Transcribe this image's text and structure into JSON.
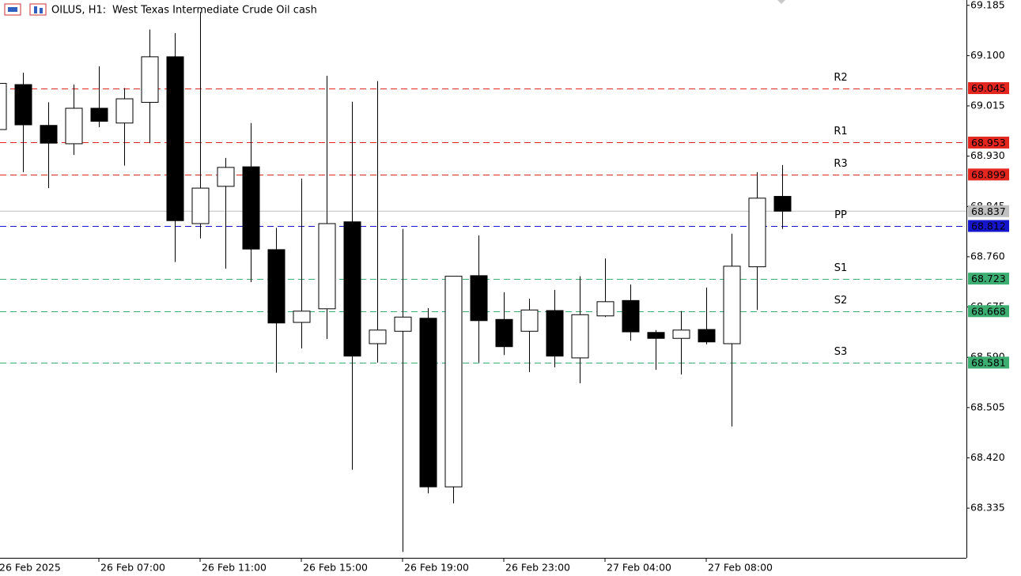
{
  "chart_data": {
    "type": "candlestick",
    "symbol": "OILUS, H1:",
    "title": "West Texas Intermediate Crude Oil cash",
    "categories": [
      "26 Feb 2025",
      null,
      null,
      null,
      "26 Feb 07:00",
      null,
      null,
      null,
      "26 Feb 11:00",
      null,
      null,
      null,
      "26 Feb 15:00",
      null,
      null,
      null,
      "26 Feb 19:00",
      null,
      null,
      null,
      "26 Feb 23:00",
      null,
      null,
      null,
      "27 Feb 04:00",
      null,
      null,
      null,
      "27 Feb 08:00",
      null,
      null,
      null
    ],
    "open": [
      68.975,
      69.051,
      68.982,
      68.951,
      69.011,
      68.986,
      69.021,
      69.098,
      68.816,
      68.879,
      68.912,
      68.772,
      68.649,
      68.672,
      68.819,
      68.613,
      68.634,
      68.656,
      68.371,
      68.728,
      68.654,
      68.634,
      68.669,
      68.589,
      68.66,
      68.686,
      68.632,
      68.622,
      68.637,
      68.613,
      68.743,
      68.862
    ],
    "high": [
      69.053,
      69.071,
      69.021,
      69.051,
      69.082,
      69.045,
      69.144,
      69.138,
      69.174,
      68.927,
      68.986,
      68.809,
      68.892,
      69.066,
      69.022,
      69.057,
      68.807,
      68.673,
      68.727,
      68.796,
      68.7,
      68.689,
      68.704,
      68.727,
      68.757,
      68.713,
      68.636,
      68.668,
      68.708,
      68.799,
      68.903,
      68.915
    ],
    "low": [
      68.975,
      68.903,
      68.876,
      68.932,
      68.979,
      68.914,
      68.952,
      68.751,
      68.791,
      68.74,
      68.717,
      68.564,
      68.605,
      68.621,
      68.4,
      68.581,
      68.261,
      68.36,
      68.343,
      68.581,
      68.594,
      68.565,
      68.573,
      68.546,
      68.658,
      68.618,
      68.569,
      68.561,
      68.612,
      68.473,
      68.67,
      68.807
    ],
    "close": [
      69.053,
      68.983,
      68.952,
      69.011,
      68.989,
      69.027,
      69.098,
      68.821,
      68.876,
      68.911,
      68.773,
      68.648,
      68.668,
      68.816,
      68.592,
      68.636,
      68.658,
      68.371,
      68.727,
      68.652,
      68.608,
      68.67,
      68.592,
      68.662,
      68.684,
      68.633,
      68.622,
      68.636,
      68.616,
      68.744,
      68.859,
      68.837
    ],
    "up_color": "#ffffff",
    "down_color": "#000000",
    "levels": [
      {
        "name": "R2",
        "value": 69.045,
        "color": "#e3261e"
      },
      {
        "name": "R1",
        "value": 68.953,
        "color": "#e3261e"
      },
      {
        "name": "R3",
        "value": 68.899,
        "color": "#e3261e"
      },
      {
        "name": "PP",
        "value": 68.812,
        "color": "#1515cc"
      },
      {
        "name": "S1",
        "value": 68.723,
        "color": "#3cae72"
      },
      {
        "name": "S2",
        "value": 68.668,
        "color": "#3cae72"
      },
      {
        "name": "S3",
        "value": 68.581,
        "color": "#3cae72"
      }
    ],
    "current_price": {
      "value": 68.837,
      "color": "#c0c0c0"
    },
    "ylim": [
      68.251,
      69.194
    ],
    "yticks": [
      69.185,
      {
        "value": 69.1,
        "label": "69.100"
      },
      69.015,
      {
        "value": 68.93,
        "label": "68.930"
      },
      68.845,
      {
        "value": 68.76,
        "label": "68.760"
      },
      68.675,
      {
        "value": 68.59,
        "label": "68.590"
      },
      68.505,
      {
        "value": 68.42,
        "label": "68.420"
      },
      68.335
    ]
  }
}
